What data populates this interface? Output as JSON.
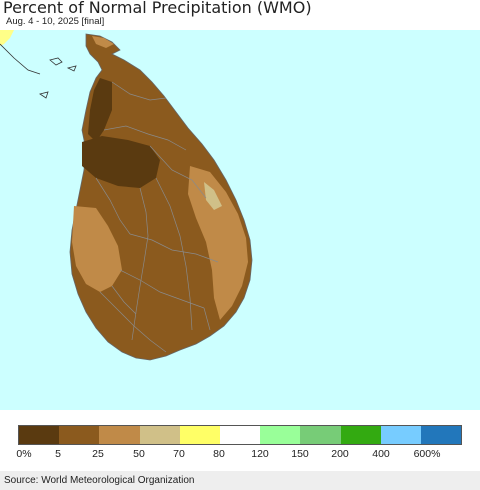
{
  "header": {
    "title": "Percent of Normal Precipitation (WMO)",
    "subtitle": "Aug. 4 - 10, 2025 [final]"
  },
  "map": {
    "region": "Sri Lanka",
    "ocean_color": "#ccffff",
    "land_color": "#8b5a1e",
    "border_color": "#8a8a8a"
  },
  "legend": {
    "colors": [
      "#5a3a10",
      "#8b5a1e",
      "#c08a48",
      "#d0c088",
      "#ffff66",
      "#ffffff",
      "#99ff99",
      "#77cc77",
      "#33aa11",
      "#77ccff",
      "#2277bb"
    ],
    "labels": [
      "0%",
      "5",
      "25",
      "50",
      "70",
      "80",
      "120",
      "150",
      "200",
      "400",
      "600%"
    ]
  },
  "footer": {
    "source": "Source: World Meteorological Organization"
  }
}
